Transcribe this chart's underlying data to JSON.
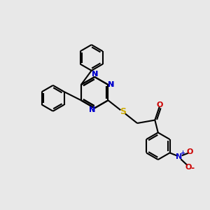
{
  "bg_color": "#e8e8e8",
  "bond_color": "#000000",
  "N_color": "#0000cc",
  "S_color": "#ccaa00",
  "O_color": "#cc0000",
  "line_width": 1.5,
  "font_size": 8,
  "figsize": [
    3.0,
    3.0
  ],
  "dpi": 100,
  "xlim": [
    0,
    10
  ],
  "ylim": [
    0,
    10
  ]
}
